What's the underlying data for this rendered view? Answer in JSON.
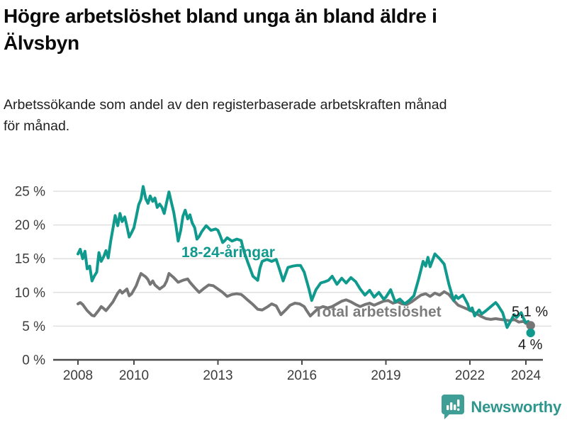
{
  "title": "Högre arbetslöshet bland unga än bland äldre i\nÄlvsbyn",
  "subtitle": "Arbetssökande som andel av den registerbaserade arbetskraften månad\nför månad.",
  "footer": {
    "brand": "Newsworthy",
    "logo_icon": "speech-bubble-bar-chart-icon"
  },
  "colors": {
    "youth_line": "#109a8d",
    "total_line": "#767676",
    "end_label_text": "#1a1a1a",
    "axis": "#4a4a4a",
    "gridline": "#dcdcdc",
    "tick_text": "#3d3d3d",
    "brand_teal": "#3f9f97"
  },
  "chart_data": {
    "type": "line",
    "title": "Högre arbetslöshet bland unga än bland äldre i Älvsbyn",
    "subtitle": "Arbetssökande som andel av den registerbaserade arbetskraften månad för månad.",
    "unit": "%",
    "x_ticks": [
      2008,
      2010,
      2013,
      2016,
      2019,
      2022,
      2024
    ],
    "y_ticks": [
      0,
      5,
      10,
      15,
      20,
      25
    ],
    "y_tick_labels": [
      "0 %",
      "5 %",
      "10 %",
      "15 %",
      "20 %",
      "25 %"
    ],
    "xlim": [
      2007.1,
      2024.9
    ],
    "ylim": [
      0,
      27
    ],
    "grid": true,
    "legend_position": "inline-labels",
    "series": [
      {
        "name": "Total arbetslöshet",
        "end_label": "5,1 %",
        "end_value": 5.1,
        "points": [
          [
            2008.0,
            8.3
          ],
          [
            2008.08,
            8.5
          ],
          [
            2008.17,
            8.2
          ],
          [
            2008.33,
            7.3
          ],
          [
            2008.5,
            6.6
          ],
          [
            2008.58,
            6.5
          ],
          [
            2008.75,
            7.4
          ],
          [
            2008.83,
            7.9
          ],
          [
            2008.92,
            7.6
          ],
          [
            2009.0,
            7.3
          ],
          [
            2009.08,
            7.7
          ],
          [
            2009.25,
            8.6
          ],
          [
            2009.42,
            9.9
          ],
          [
            2009.5,
            10.3
          ],
          [
            2009.58,
            9.9
          ],
          [
            2009.75,
            10.5
          ],
          [
            2009.83,
            9.5
          ],
          [
            2009.92,
            9.8
          ],
          [
            2010.08,
            11.0
          ],
          [
            2010.17,
            12.0
          ],
          [
            2010.25,
            12.8
          ],
          [
            2010.42,
            12.3
          ],
          [
            2010.5,
            11.9
          ],
          [
            2010.58,
            11.2
          ],
          [
            2010.67,
            11.7
          ],
          [
            2010.75,
            11.1
          ],
          [
            2010.92,
            10.5
          ],
          [
            2011.08,
            11.0
          ],
          [
            2011.17,
            11.7
          ],
          [
            2011.25,
            12.8
          ],
          [
            2011.42,
            12.2
          ],
          [
            2011.58,
            11.5
          ],
          [
            2011.75,
            11.8
          ],
          [
            2011.92,
            12.0
          ],
          [
            2012.0,
            11.5
          ],
          [
            2012.17,
            10.7
          ],
          [
            2012.33,
            10.0
          ],
          [
            2012.5,
            10.6
          ],
          [
            2012.67,
            11.1
          ],
          [
            2012.83,
            11.0
          ],
          [
            2013.0,
            10.5
          ],
          [
            2013.17,
            10.0
          ],
          [
            2013.33,
            9.4
          ],
          [
            2013.5,
            9.7
          ],
          [
            2013.67,
            9.8
          ],
          [
            2013.83,
            9.7
          ],
          [
            2013.92,
            9.4
          ],
          [
            2014.08,
            8.8
          ],
          [
            2014.25,
            8.2
          ],
          [
            2014.42,
            7.5
          ],
          [
            2014.58,
            7.4
          ],
          [
            2014.75,
            7.8
          ],
          [
            2014.92,
            8.3
          ],
          [
            2015.08,
            8.0
          ],
          [
            2015.25,
            6.7
          ],
          [
            2015.42,
            7.4
          ],
          [
            2015.58,
            8.1
          ],
          [
            2015.75,
            8.4
          ],
          [
            2015.92,
            8.3
          ],
          [
            2016.08,
            7.9
          ],
          [
            2016.17,
            7.3
          ],
          [
            2016.3,
            6.5
          ],
          [
            2016.42,
            7.0
          ],
          [
            2016.58,
            7.6
          ],
          [
            2016.75,
            7.9
          ],
          [
            2016.92,
            7.7
          ],
          [
            2017.08,
            7.9
          ],
          [
            2017.25,
            8.3
          ],
          [
            2017.42,
            8.7
          ],
          [
            2017.58,
            8.9
          ],
          [
            2017.75,
            8.6
          ],
          [
            2017.92,
            8.2
          ],
          [
            2018.08,
            7.9
          ],
          [
            2018.25,
            8.2
          ],
          [
            2018.42,
            8.4
          ],
          [
            2018.58,
            8.1
          ],
          [
            2018.75,
            8.4
          ],
          [
            2018.92,
            8.7
          ],
          [
            2019.08,
            8.8
          ],
          [
            2019.25,
            8.4
          ],
          [
            2019.42,
            8.6
          ],
          [
            2019.58,
            8.3
          ],
          [
            2019.75,
            8.2
          ],
          [
            2019.92,
            8.6
          ],
          [
            2020.08,
            9.1
          ],
          [
            2020.25,
            9.6
          ],
          [
            2020.42,
            9.8
          ],
          [
            2020.58,
            9.4
          ],
          [
            2020.75,
            9.9
          ],
          [
            2020.92,
            9.6
          ],
          [
            2021.08,
            10.1
          ],
          [
            2021.25,
            9.7
          ],
          [
            2021.42,
            8.8
          ],
          [
            2021.58,
            8.1
          ],
          [
            2021.75,
            7.8
          ],
          [
            2021.92,
            7.5
          ],
          [
            2022.08,
            7.2
          ],
          [
            2022.25,
            6.8
          ],
          [
            2022.42,
            6.4
          ],
          [
            2022.58,
            6.1
          ],
          [
            2022.75,
            6.0
          ],
          [
            2022.92,
            6.1
          ],
          [
            2023.08,
            6.0
          ],
          [
            2023.25,
            5.9
          ],
          [
            2023.42,
            5.8
          ],
          [
            2023.58,
            6.0
          ],
          [
            2023.75,
            5.6
          ],
          [
            2023.92,
            5.7
          ],
          [
            2024.0,
            5.4
          ],
          [
            2024.08,
            5.5
          ],
          [
            2024.17,
            5.1
          ]
        ]
      },
      {
        "name": "18-24-åringar",
        "end_label": "4 %",
        "end_value": 4.0,
        "points": [
          [
            2008.0,
            15.7
          ],
          [
            2008.08,
            16.4
          ],
          [
            2008.17,
            15.0
          ],
          [
            2008.25,
            16.1
          ],
          [
            2008.33,
            13.5
          ],
          [
            2008.42,
            13.9
          ],
          [
            2008.5,
            11.7
          ],
          [
            2008.58,
            12.4
          ],
          [
            2008.67,
            13.0
          ],
          [
            2008.75,
            15.9
          ],
          [
            2008.83,
            14.6
          ],
          [
            2008.92,
            15.3
          ],
          [
            2009.0,
            16.2
          ],
          [
            2009.08,
            15.1
          ],
          [
            2009.17,
            17.6
          ],
          [
            2009.25,
            19.5
          ],
          [
            2009.33,
            21.4
          ],
          [
            2009.42,
            19.9
          ],
          [
            2009.5,
            21.7
          ],
          [
            2009.58,
            20.5
          ],
          [
            2009.67,
            21.2
          ],
          [
            2009.75,
            19.8
          ],
          [
            2009.83,
            18.2
          ],
          [
            2009.92,
            18.9
          ],
          [
            2010.0,
            19.6
          ],
          [
            2010.08,
            21.2
          ],
          [
            2010.17,
            23.0
          ],
          [
            2010.25,
            23.8
          ],
          [
            2010.33,
            25.7
          ],
          [
            2010.42,
            23.9
          ],
          [
            2010.5,
            23.2
          ],
          [
            2010.58,
            24.3
          ],
          [
            2010.67,
            23.5
          ],
          [
            2010.75,
            24.0
          ],
          [
            2010.83,
            22.6
          ],
          [
            2010.92,
            23.1
          ],
          [
            2011.0,
            22.6
          ],
          [
            2011.08,
            21.7
          ],
          [
            2011.17,
            23.4
          ],
          [
            2011.25,
            24.9
          ],
          [
            2011.33,
            23.5
          ],
          [
            2011.42,
            21.9
          ],
          [
            2011.5,
            19.9
          ],
          [
            2011.58,
            17.6
          ],
          [
            2011.67,
            19.2
          ],
          [
            2011.75,
            21.3
          ],
          [
            2011.83,
            22.2
          ],
          [
            2011.92,
            20.9
          ],
          [
            2012.0,
            21.5
          ],
          [
            2012.08,
            20.3
          ],
          [
            2012.17,
            19.6
          ],
          [
            2012.25,
            17.9
          ],
          [
            2012.33,
            18.3
          ],
          [
            2012.42,
            19.0
          ],
          [
            2012.58,
            19.9
          ],
          [
            2012.75,
            19.2
          ],
          [
            2012.92,
            19.4
          ],
          [
            2013.0,
            19.2
          ],
          [
            2013.08,
            18.4
          ],
          [
            2013.17,
            17.4
          ],
          [
            2013.25,
            17.7
          ],
          [
            2013.33,
            18.1
          ],
          [
            2013.5,
            17.6
          ],
          [
            2013.67,
            17.9
          ],
          [
            2013.83,
            17.7
          ],
          [
            2013.92,
            16.2
          ],
          [
            2014.08,
            14.3
          ],
          [
            2014.25,
            12.4
          ],
          [
            2014.42,
            11.8
          ],
          [
            2014.5,
            13.6
          ],
          [
            2014.58,
            14.6
          ],
          [
            2014.75,
            14.9
          ],
          [
            2014.92,
            14.6
          ],
          [
            2015.08,
            14.9
          ],
          [
            2015.17,
            13.8
          ],
          [
            2015.33,
            11.7
          ],
          [
            2015.5,
            13.7
          ],
          [
            2015.67,
            13.9
          ],
          [
            2015.83,
            14.0
          ],
          [
            2015.95,
            14.0
          ],
          [
            2016.08,
            13.0
          ],
          [
            2016.25,
            10.5
          ],
          [
            2016.35,
            8.8
          ],
          [
            2016.5,
            10.4
          ],
          [
            2016.67,
            11.4
          ],
          [
            2016.83,
            11.6
          ],
          [
            2016.95,
            11.8
          ],
          [
            2017.08,
            12.4
          ],
          [
            2017.25,
            11.2
          ],
          [
            2017.42,
            12.1
          ],
          [
            2017.58,
            11.4
          ],
          [
            2017.75,
            12.2
          ],
          [
            2017.92,
            11.6
          ],
          [
            2018.08,
            10.5
          ],
          [
            2018.25,
            9.6
          ],
          [
            2018.42,
            10.3
          ],
          [
            2018.58,
            9.3
          ],
          [
            2018.75,
            10.0
          ],
          [
            2018.92,
            9.0
          ],
          [
            2019.0,
            9.3
          ],
          [
            2019.17,
            10.4
          ],
          [
            2019.33,
            8.6
          ],
          [
            2019.5,
            9.0
          ],
          [
            2019.67,
            8.3
          ],
          [
            2019.83,
            8.8
          ],
          [
            2020.0,
            9.5
          ],
          [
            2020.17,
            12.0
          ],
          [
            2020.33,
            14.6
          ],
          [
            2020.42,
            13.9
          ],
          [
            2020.5,
            15.2
          ],
          [
            2020.58,
            13.8
          ],
          [
            2020.75,
            15.7
          ],
          [
            2020.92,
            15.0
          ],
          [
            2021.08,
            14.2
          ],
          [
            2021.25,
            11.2
          ],
          [
            2021.42,
            8.8
          ],
          [
            2021.5,
            9.5
          ],
          [
            2021.58,
            9.1
          ],
          [
            2021.75,
            9.6
          ],
          [
            2021.92,
            8.3
          ],
          [
            2022.0,
            7.3
          ],
          [
            2022.08,
            7.7
          ],
          [
            2022.17,
            6.5
          ],
          [
            2022.33,
            7.4
          ],
          [
            2022.42,
            6.8
          ],
          [
            2022.58,
            7.3
          ],
          [
            2022.75,
            7.9
          ],
          [
            2022.92,
            8.5
          ],
          [
            2023.0,
            8.1
          ],
          [
            2023.17,
            7.0
          ],
          [
            2023.33,
            4.8
          ],
          [
            2023.5,
            6.1
          ],
          [
            2023.58,
            6.7
          ],
          [
            2023.67,
            6.3
          ],
          [
            2023.83,
            7.0
          ],
          [
            2023.92,
            6.1
          ],
          [
            2024.0,
            5.5
          ],
          [
            2024.08,
            5.7
          ],
          [
            2024.17,
            4.0
          ]
        ]
      }
    ]
  }
}
